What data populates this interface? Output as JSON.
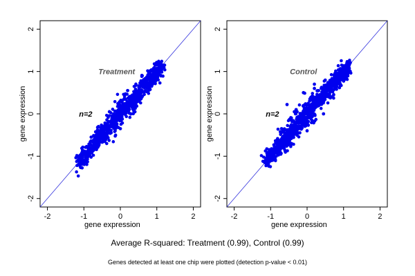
{
  "colors": {
    "points": "#0000ee",
    "diagonal": "#3333dd",
    "axis": "#000000",
    "panel_label": "#555555"
  },
  "captions": {
    "main": "Average R-squared: Treatment (0.99), Control (0.99)",
    "sub": "Genes detected at least one chip were plotted (detection p-value < 0.01)"
  },
  "chart_data": [
    {
      "type": "scatter",
      "panel_label": "Treatment",
      "annotation": "n=2",
      "xlabel": "gene expression",
      "ylabel": "gene expression",
      "xlim": [
        -2.2,
        2.2
      ],
      "ylim": [
        -2.2,
        2.2
      ],
      "xticks": [
        -2,
        -1,
        0,
        1,
        2
      ],
      "yticks": [
        -2,
        -1,
        0,
        1,
        2
      ],
      "reference_line": "y = x",
      "grid": false,
      "points": [
        [
          -1.1,
          -1.15
        ],
        [
          -0.9,
          -0.9
        ],
        [
          -0.7,
          -0.75
        ],
        [
          -0.5,
          -0.55
        ],
        [
          -0.3,
          -0.3
        ],
        [
          -0.1,
          -0.1
        ],
        [
          0.1,
          0.12
        ],
        [
          0.3,
          0.3
        ],
        [
          0.5,
          0.55
        ],
        [
          0.7,
          0.72
        ],
        [
          0.9,
          0.92
        ],
        [
          1.05,
          1.08
        ],
        [
          1.15,
          1.15
        ],
        [
          -0.3,
          0.05
        ],
        [
          0.0,
          -0.35
        ],
        [
          0.2,
          0.55
        ],
        [
          0.4,
          0.05
        ],
        [
          -0.6,
          -0.3
        ],
        [
          0.6,
          0.9
        ],
        [
          -0.8,
          -0.55
        ]
      ]
    },
    {
      "type": "scatter",
      "panel_label": "Control",
      "annotation": "n=2",
      "xlabel": "gene expression",
      "ylabel": "gene expression",
      "xlim": [
        -2.2,
        2.2
      ],
      "ylim": [
        -2.2,
        2.2
      ],
      "xticks": [
        -2,
        -1,
        0,
        1,
        2
      ],
      "yticks": [
        -2,
        -1,
        0,
        1,
        2
      ],
      "reference_line": "y = x",
      "grid": false,
      "points": [
        [
          -1.1,
          -1.1
        ],
        [
          -0.9,
          -0.88
        ],
        [
          -0.7,
          -0.7
        ],
        [
          -0.5,
          -0.52
        ],
        [
          -0.3,
          -0.28
        ],
        [
          -0.1,
          -0.1
        ],
        [
          0.1,
          0.12
        ],
        [
          0.3,
          0.32
        ],
        [
          0.5,
          0.5
        ],
        [
          0.7,
          0.72
        ],
        [
          0.9,
          0.92
        ],
        [
          1.05,
          1.08
        ],
        [
          1.15,
          1.15
        ],
        [
          -0.3,
          0.1
        ],
        [
          0.0,
          -0.4
        ],
        [
          0.2,
          0.6
        ],
        [
          0.45,
          0.0
        ],
        [
          -0.7,
          -0.35
        ],
        [
          -0.55,
          0.22
        ],
        [
          -0.35,
          0.05
        ],
        [
          -0.1,
          0.5
        ],
        [
          0.2,
          0.7
        ],
        [
          0.3,
          0.55
        ],
        [
          -0.5,
          -0.7
        ]
      ]
    }
  ]
}
